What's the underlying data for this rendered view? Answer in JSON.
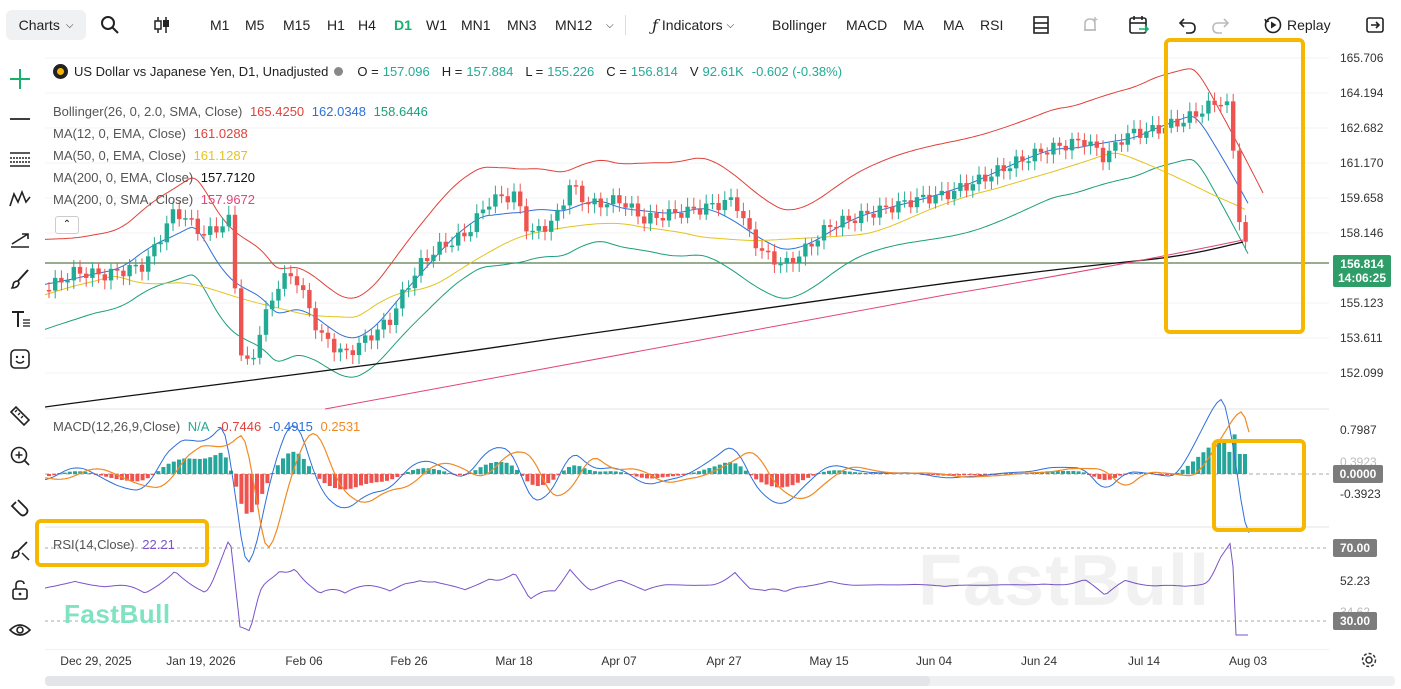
{
  "topbar": {
    "charts_label": "Charts",
    "timeframes": [
      "M1",
      "M5",
      "M15",
      "H1",
      "H4",
      "D1",
      "W1",
      "MN1",
      "MN3",
      "MN12"
    ],
    "active_timeframe": "D1",
    "indicators_label": "Indicators",
    "quick_indicators": [
      "Bollinger",
      "MACD",
      "MA",
      "MA",
      "RSI"
    ],
    "replay_label": "Replay"
  },
  "symbol": {
    "name": "US Dollar vs Japanese Yen, D1, Unadjusted",
    "o_label": "O =",
    "o_value": "157.096",
    "h_label": "H =",
    "h_value": "157.884",
    "l_label": "L =",
    "l_value": "155.226",
    "c_label": "C =",
    "c_value": "156.814",
    "v_label": "V",
    "v_value": "92.61K",
    "change": "-0.602 (-0.38%)"
  },
  "legend": [
    {
      "label": "Bollinger(26, 0, 2.0, SMA, Close)",
      "values": [
        {
          "v": "165.4250",
          "color": "#e0413a"
        },
        {
          "v": "162.0348",
          "color": "#2e6fd8"
        },
        {
          "v": "158.6446",
          "color": "#1a9f7a"
        }
      ]
    },
    {
      "label": "MA(12, 0, EMA, Close)",
      "values": [
        {
          "v": "161.0288",
          "color": "#e0413a"
        }
      ]
    },
    {
      "label": "MA(50, 0, EMA, Close)",
      "values": [
        {
          "v": "161.1287",
          "color": "#e3c31f"
        }
      ]
    },
    {
      "label": "MA(200, 0, EMA, Close)",
      "values": [
        {
          "v": "157.7120",
          "color": "#111111"
        }
      ]
    },
    {
      "label": "MA(200, 0, SMA, Close)",
      "values": [
        {
          "v": "157.9672",
          "color": "#e0457b"
        }
      ]
    }
  ],
  "price_axis": [
    "165.706",
    "164.194",
    "162.682",
    "161.170",
    "159.658",
    "158.146",
    "155.123",
    "153.611",
    "152.099"
  ],
  "current_price": "156.814",
  "current_time": "14:06:25",
  "macd": {
    "label": "MACD(12,26,9,Close)",
    "na": "N/A",
    "v1": "-0.7446",
    "v2": "-0.4915",
    "v3": "0.2531",
    "axis": [
      "0.7987",
      "0.3923",
      "-0.3923"
    ],
    "zero_tag": "0.0000"
  },
  "rsi": {
    "label": "RSI(14,Close)",
    "value": "22.21",
    "axis": [
      "52.23",
      "34.62"
    ],
    "tag_70": "70.00",
    "tag_30": "30.00"
  },
  "dates": [
    "Dec 29, 2025",
    "Jan 19, 2026",
    "Feb 06",
    "Feb 26",
    "Mar 18",
    "Apr 07",
    "Apr 27",
    "May 15",
    "Jun 04",
    "Jun 24",
    "Jul 14",
    "Aug 03"
  ],
  "watermark_left": "FastBull",
  "watermark_right": "FastBull",
  "colors": {
    "up": "#22ab94",
    "down": "#ef5350",
    "active": "#16b26b",
    "highlight": "#f5b700"
  }
}
